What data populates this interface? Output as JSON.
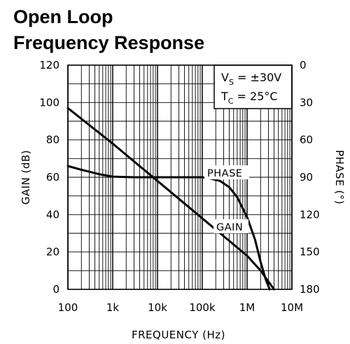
{
  "chart_data": {
    "type": "line",
    "title_lines": [
      "Open Loop",
      "Frequency Response"
    ],
    "xlabel": "FREQUENCY (Hz)",
    "ylabel": "GAIN (dB)",
    "y2label": "PHASE (°)",
    "x_scale": "log",
    "xlim": [
      100,
      10000000
    ],
    "ylim": [
      0,
      120
    ],
    "y2lim": [
      0,
      180
    ],
    "y2_inverted": true,
    "x_ticks": [
      {
        "value": 100,
        "label": "100"
      },
      {
        "value": 1000,
        "label": "1k"
      },
      {
        "value": 10000,
        "label": "10k"
      },
      {
        "value": 100000,
        "label": "100k"
      },
      {
        "value": 1000000,
        "label": "1M"
      },
      {
        "value": 10000000,
        "label": "10M"
      }
    ],
    "y_ticks": [
      {
        "value": 0,
        "label": "0"
      },
      {
        "value": 20,
        "label": "20"
      },
      {
        "value": 40,
        "label": "40"
      },
      {
        "value": 60,
        "label": "60"
      },
      {
        "value": 80,
        "label": "80"
      },
      {
        "value": 100,
        "label": "100"
      },
      {
        "value": 120,
        "label": "120"
      }
    ],
    "y2_ticks": [
      {
        "value": 0,
        "label": "0"
      },
      {
        "value": 30,
        "label": "30"
      },
      {
        "value": 60,
        "label": "60"
      },
      {
        "value": 90,
        "label": "90"
      },
      {
        "value": 120,
        "label": "120"
      },
      {
        "value": 150,
        "label": "150"
      },
      {
        "value": 180,
        "label": "180"
      }
    ],
    "grid": true,
    "annotation": {
      "line1": {
        "main": "V",
        "sub": "S",
        "rest": " = ±30V"
      },
      "line2": {
        "main": "T",
        "sub": "C",
        "rest": " = 25°C"
      },
      "placement": "top-right"
    },
    "series": [
      {
        "name": "GAIN",
        "axis": "left",
        "x": [
          100,
          1000,
          10000,
          100000,
          1000000,
          2000000,
          4000000
        ],
        "y": [
          97,
          78,
          58,
          38,
          18,
          10,
          0
        ]
      },
      {
        "name": "PHASE",
        "axis": "right",
        "x": [
          100,
          200,
          500,
          1000,
          3000,
          10000,
          30000,
          100000,
          150000,
          250000,
          400000,
          600000,
          1000000,
          1500000,
          2000000,
          2600000,
          3200000
        ],
        "y": [
          81,
          84,
          87.5,
          89.5,
          90,
          90,
          90,
          90,
          91,
          93,
          98,
          106,
          122,
          140,
          158,
          172,
          180
        ]
      }
    ]
  }
}
